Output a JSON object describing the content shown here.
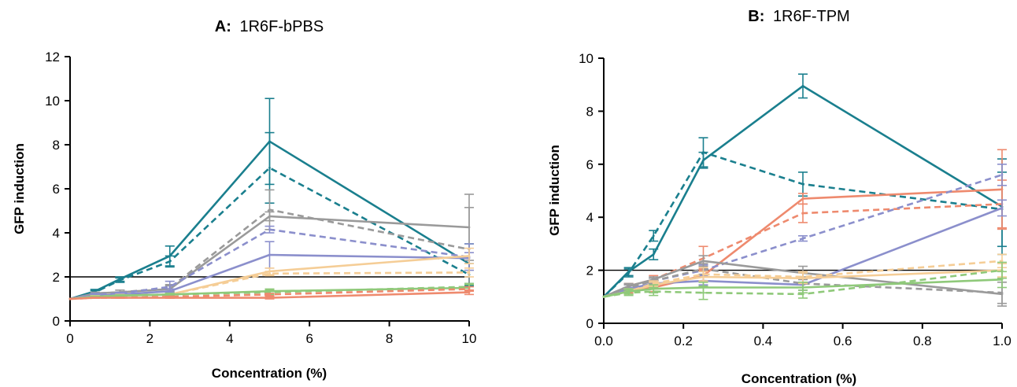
{
  "chart_data": [
    {
      "type": "line",
      "title_prefix": "A:",
      "title": "1R6F-bPBS",
      "xlabel": "Concentration (%)",
      "ylabel": "GFP induction",
      "xlim": [
        0,
        10
      ],
      "ylim": [
        0,
        12
      ],
      "xticks": [
        0,
        2,
        4,
        6,
        8,
        10
      ],
      "yticks": [
        0,
        2,
        4,
        6,
        8,
        10,
        12
      ],
      "reference_line": 2,
      "x": [
        0,
        0.625,
        1.25,
        2.5,
        5,
        10
      ],
      "series": [
        {
          "color": "#1a7f8e",
          "dash": false,
          "values": [
            1.0,
            1.35,
            1.9,
            2.95,
            8.15,
            2.6
          ],
          "err": [
            0,
            0.08,
            0.1,
            0.45,
            1.95,
            0.9
          ]
        },
        {
          "color": "#1a7f8e",
          "dash": true,
          "values": [
            1.0,
            1.3,
            1.85,
            2.7,
            6.95,
            2.1
          ],
          "err": [
            0,
            0.08,
            0.1,
            0.25,
            1.6,
            0.5
          ]
        },
        {
          "color": "#9a9a9a",
          "dash": false,
          "values": [
            1.0,
            1.25,
            1.3,
            1.45,
            4.75,
            4.25
          ],
          "err": [
            0,
            0.05,
            0.1,
            0.15,
            0.2,
            1.5
          ]
        },
        {
          "color": "#9a9a9a",
          "dash": true,
          "values": [
            1.0,
            1.25,
            1.3,
            1.5,
            5.05,
            3.25
          ],
          "err": [
            0,
            0.05,
            0.1,
            0.15,
            0.9,
            1.9
          ]
        },
        {
          "color": "#8b8fcc",
          "dash": false,
          "values": [
            1.0,
            1.15,
            1.2,
            1.35,
            3.0,
            2.85
          ],
          "err": [
            0,
            0.05,
            0.05,
            0.1,
            0.6,
            0.25
          ]
        },
        {
          "color": "#8b8fcc",
          "dash": true,
          "values": [
            1.0,
            1.2,
            1.25,
            1.55,
            4.15,
            2.9
          ],
          "err": [
            0,
            0.05,
            0.05,
            0.25,
            0.15,
            0.6
          ]
        },
        {
          "color": "#f5cd96",
          "dash": false,
          "values": [
            1.0,
            1.1,
            1.15,
            1.2,
            2.25,
            2.95
          ],
          "err": [
            0,
            0.05,
            0.05,
            0.05,
            0.15,
            0.35
          ]
        },
        {
          "color": "#f5cd96",
          "dash": true,
          "values": [
            1.0,
            1.1,
            1.15,
            1.2,
            2.15,
            2.2
          ],
          "err": [
            0,
            0.05,
            0.05,
            0.05,
            0.1,
            0.2
          ]
        },
        {
          "color": "#8fc97a",
          "dash": false,
          "values": [
            1.0,
            1.1,
            1.15,
            1.2,
            1.35,
            1.5
          ],
          "err": [
            0,
            0.03,
            0.03,
            0.05,
            0.1,
            0.15
          ]
        },
        {
          "color": "#8fc97a",
          "dash": true,
          "values": [
            1.0,
            1.1,
            1.15,
            1.2,
            1.3,
            1.55
          ],
          "err": [
            0,
            0.03,
            0.03,
            0.05,
            0.1,
            0.15
          ]
        },
        {
          "color": "#ee8a6e",
          "dash": false,
          "values": [
            1.0,
            1.05,
            1.05,
            1.05,
            1.05,
            1.3
          ],
          "err": [
            0,
            0.02,
            0.02,
            0.02,
            0.05,
            0.1
          ]
        },
        {
          "color": "#ee8a6e",
          "dash": true,
          "values": [
            1.0,
            1.05,
            1.05,
            1.1,
            1.2,
            1.45
          ],
          "err": [
            0,
            0.02,
            0.02,
            0.02,
            0.05,
            0.1
          ]
        }
      ]
    },
    {
      "type": "line",
      "title_prefix": "B:",
      "title": "1R6F-TPM",
      "xlabel": "Concentration (%)",
      "ylabel": "GFP induction",
      "xlim": [
        0,
        1
      ],
      "ylim": [
        0,
        10
      ],
      "xticks": [
        "0.0",
        "0.2",
        "0.4",
        "0.6",
        "0.8",
        "1.0"
      ],
      "yticks": [
        0,
        2,
        4,
        6,
        8,
        10
      ],
      "reference_line": 2,
      "x": [
        0,
        0.0625,
        0.125,
        0.25,
        0.5,
        1.0
      ],
      "series": [
        {
          "color": "#1a7f8e",
          "dash": false,
          "values": [
            1.0,
            1.95,
            2.6,
            6.15,
            8.95,
            4.4
          ],
          "err": [
            0,
            0.15,
            0.2,
            0.3,
            0.45,
            1.8
          ]
        },
        {
          "color": "#1a7f8e",
          "dash": true,
          "values": [
            1.0,
            1.9,
            3.3,
            6.45,
            5.25,
            4.3
          ],
          "err": [
            0,
            0.15,
            0.2,
            0.55,
            0.45,
            1.4
          ]
        },
        {
          "color": "#ee8a6e",
          "dash": false,
          "values": [
            1.0,
            1.25,
            1.35,
            1.8,
            4.7,
            5.05
          ],
          "err": [
            0,
            0.1,
            0.15,
            0.25,
            0.2,
            1.5
          ]
        },
        {
          "color": "#ee8a6e",
          "dash": true,
          "values": [
            1.0,
            1.4,
            1.65,
            2.45,
            4.15,
            4.5
          ],
          "err": [
            0,
            0.1,
            0.15,
            0.45,
            0.35,
            0.9
          ]
        },
        {
          "color": "#8b8fcc",
          "dash": false,
          "values": [
            1.0,
            1.3,
            1.5,
            1.6,
            1.45,
            4.35
          ],
          "err": [
            0,
            0.05,
            0.1,
            0.15,
            0.2,
            0.3
          ]
        },
        {
          "color": "#8b8fcc",
          "dash": true,
          "values": [
            1.0,
            1.4,
            1.6,
            2.0,
            3.2,
            5.6
          ],
          "err": [
            0,
            0.05,
            0.1,
            0.2,
            0.1,
            0.4
          ]
        },
        {
          "color": "#9a9a9a",
          "dash": false,
          "values": [
            1.0,
            1.4,
            1.65,
            2.35,
            1.9,
            1.1
          ],
          "err": [
            0,
            0.1,
            0.1,
            0.2,
            0.25,
            0.45
          ]
        },
        {
          "color": "#9a9a9a",
          "dash": true,
          "values": [
            1.0,
            1.35,
            1.6,
            2.05,
            1.5,
            1.15
          ],
          "err": [
            0,
            0.1,
            0.1,
            0.2,
            0.25,
            0.4
          ]
        },
        {
          "color": "#f5cd96",
          "dash": false,
          "values": [
            1.0,
            1.2,
            1.45,
            1.75,
            1.7,
            2.0
          ],
          "err": [
            0,
            0.1,
            0.1,
            0.2,
            0.2,
            0.25
          ]
        },
        {
          "color": "#f5cd96",
          "dash": true,
          "values": [
            1.0,
            1.2,
            1.5,
            1.85,
            1.75,
            2.35
          ],
          "err": [
            0,
            0.1,
            0.1,
            0.25,
            0.2,
            0.25
          ]
        },
        {
          "color": "#8fc97a",
          "dash": false,
          "values": [
            1.0,
            1.2,
            1.3,
            1.35,
            1.35,
            1.65
          ],
          "err": [
            0,
            0.1,
            0.15,
            0.2,
            0.2,
            0.3
          ]
        },
        {
          "color": "#8fc97a",
          "dash": true,
          "values": [
            1.0,
            1.15,
            1.2,
            1.15,
            1.1,
            2.0
          ],
          "err": [
            0,
            0.1,
            0.15,
            0.25,
            0.15,
            0.3
          ]
        }
      ]
    }
  ]
}
